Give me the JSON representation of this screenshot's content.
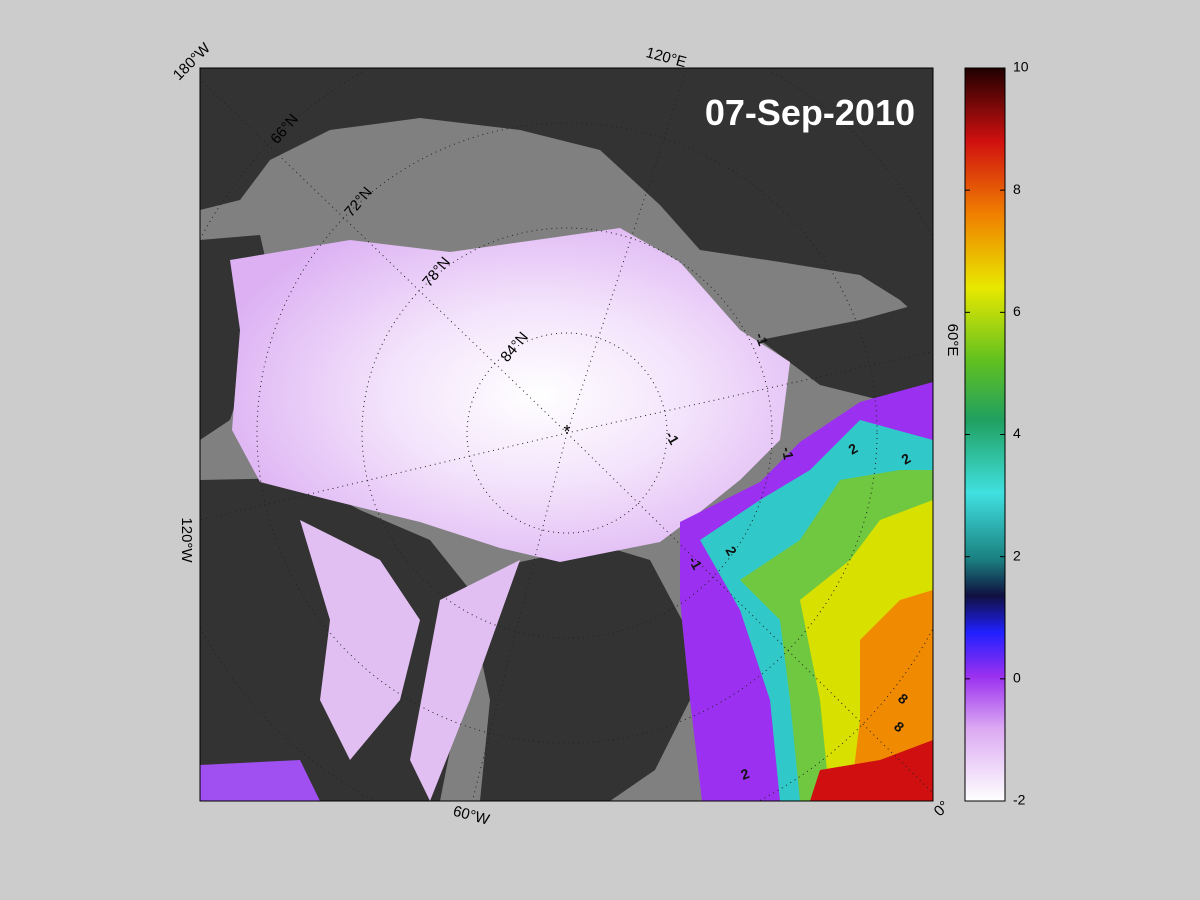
{
  "map": {
    "date": "07-Sep-2010",
    "longitude_labels": [
      "180°W",
      "120°E",
      "60°E",
      "0°",
      "60°W",
      "120°W"
    ],
    "latitude_labels": [
      "66°N",
      "72°N",
      "78°N",
      "84°N"
    ],
    "contour_labels": [
      "-1",
      "-1",
      "-1",
      "-1",
      "2",
      "2",
      "2",
      "2",
      "8",
      "8"
    ]
  },
  "colorbar": {
    "lim": [
      -2,
      10
    ],
    "ticks": [
      -2,
      0,
      2,
      4,
      6,
      8,
      10
    ]
  }
}
